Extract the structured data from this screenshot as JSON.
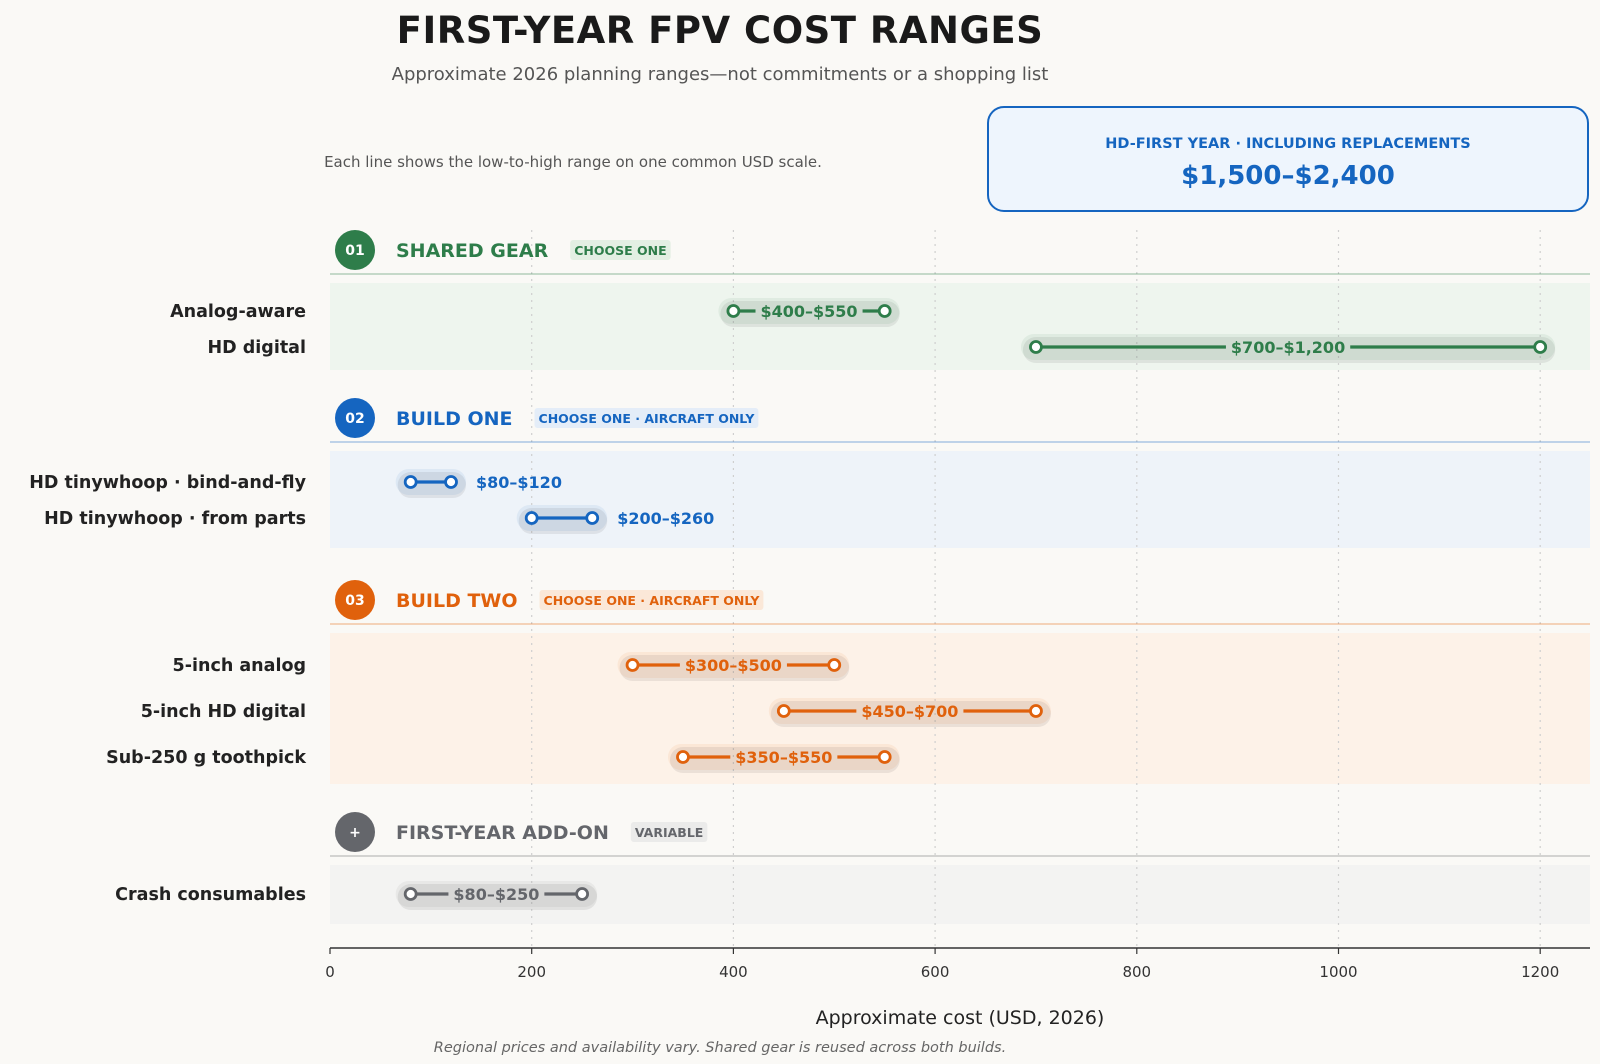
{
  "title": "FIRST-YEAR FPV COST RANGES",
  "subtitle": "Approximate 2026 planning ranges—not commitments or a shopping list",
  "note": "Each line shows the low-to-high range on one common USD scale.",
  "callout": {
    "title": "HD-FIRST YEAR · INCLUDING REPLACEMENTS",
    "value": "$1,500–$2,400",
    "color": "#1565c0"
  },
  "footnote": "Regional prices and availability vary. Shared gear is reused across both builds.",
  "chart_data": {
    "type": "range",
    "xlabel": "Approximate cost (USD, 2026)",
    "xlim": [
      0,
      1250
    ],
    "xticks": [
      0,
      200,
      400,
      600,
      800,
      1000,
      1200
    ],
    "grid": true,
    "sections": [
      {
        "badge": "01",
        "title": "SHARED GEAR",
        "tag": "CHOOSE ONE",
        "color": "#2e7d4a",
        "band": "#eef5ee",
        "tag_bg": "#e3efe3",
        "rows": [
          {
            "label": "Analog-aware",
            "low": 400,
            "high": 550,
            "text": "$400–$550"
          },
          {
            "label": "HD digital",
            "low": 700,
            "high": 1200,
            "text": "$700–$1,200"
          }
        ]
      },
      {
        "badge": "02",
        "title": "BUILD ONE",
        "tag": "CHOOSE ONE · AIRCRAFT ONLY",
        "color": "#1565c0",
        "band": "#eef3f9",
        "tag_bg": "#e4edf8",
        "rows": [
          {
            "label": "HD tinywhoop · bind-and-fly",
            "low": 80,
            "high": 120,
            "text": "$80–$120"
          },
          {
            "label": "HD tinywhoop · from parts",
            "low": 200,
            "high": 260,
            "text": "$200–$260"
          }
        ]
      },
      {
        "badge": "03",
        "title": "BUILD TWO",
        "tag": "CHOOSE ONE · AIRCRAFT ONLY",
        "color": "#e0610c",
        "band": "#fdf2e8",
        "tag_bg": "#fbe8d8",
        "rows": [
          {
            "label": "5-inch analog",
            "low": 300,
            "high": 500,
            "text": "$300–$500"
          },
          {
            "label": "5-inch HD digital",
            "low": 450,
            "high": 700,
            "text": "$450–$700"
          },
          {
            "label": "Sub-250 g toothpick",
            "low": 350,
            "high": 550,
            "text": "$350–$550"
          }
        ]
      },
      {
        "badge": "+",
        "title": "FIRST-YEAR ADD-ON",
        "tag": "VARIABLE",
        "color": "#64666b",
        "band": "#f3f3f2",
        "tag_bg": "#ebebea",
        "rows": [
          {
            "label": "Crash consumables",
            "low": 80,
            "high": 250,
            "text": "$80–$250"
          }
        ]
      }
    ]
  }
}
